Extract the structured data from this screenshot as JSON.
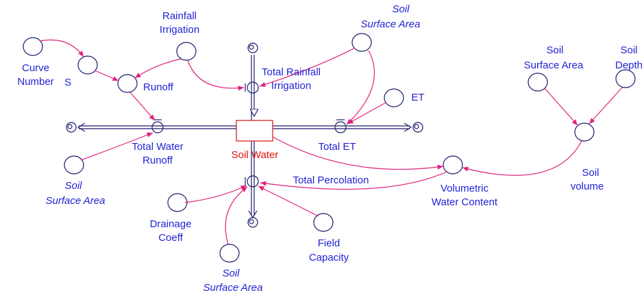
{
  "stock": {
    "label": "Soil Water"
  },
  "flows": [
    {
      "label": [
        "Total Rainfall",
        "Irrigation"
      ]
    },
    {
      "label": [
        "Total Water",
        "Runoff"
      ]
    },
    {
      "label": [
        "Total ET"
      ]
    },
    {
      "label": [
        "Total Percolation"
      ]
    }
  ],
  "nodes": [
    {
      "label": [
        "Curve",
        "Number"
      ]
    },
    {
      "label": [
        "S"
      ]
    },
    {
      "label": [
        "Rainfall",
        "Irrigation"
      ]
    },
    {
      "label": [
        "Runoff"
      ]
    },
    {
      "label": [
        "Soil",
        "Surface Area"
      ]
    },
    {
      "label": [
        "ET"
      ]
    },
    {
      "label": [
        "Soil",
        "Surface Area"
      ]
    },
    {
      "label": [
        "Soil",
        "Surface Area"
      ]
    },
    {
      "label": [
        "Soil",
        "Depth"
      ]
    },
    {
      "label": [
        "Soil",
        "volume"
      ]
    },
    {
      "label": [
        "Volumetric",
        "Water Content"
      ]
    },
    {
      "label": [
        "Drainage",
        "Coeff"
      ]
    },
    {
      "label": [
        "Field",
        "Capacity"
      ]
    },
    {
      "label": [
        "Soil",
        "Surface Area"
      ]
    }
  ]
}
